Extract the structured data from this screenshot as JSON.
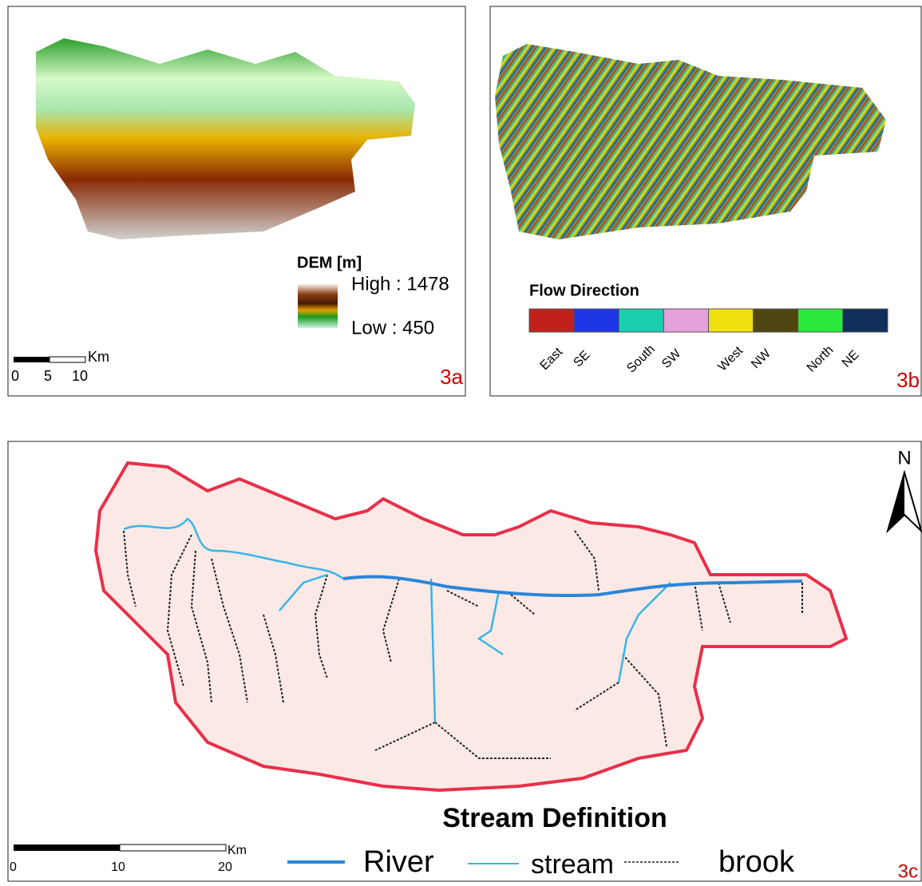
{
  "panel_a": {
    "legend_title": "DEM [m]",
    "high": "High : 1478",
    "low": "Low : 450",
    "scale_unit": "Km",
    "scale_ticks": [
      "0",
      "5",
      "10"
    ],
    "label": "3a"
  },
  "panel_b": {
    "legend_title": "Flow Direction",
    "classes": [
      {
        "name": "East",
        "color": "#c0211a"
      },
      {
        "name": "SE",
        "color": "#1f35e8"
      },
      {
        "name": "South",
        "color": "#19cfae"
      },
      {
        "name": "SW",
        "color": "#e6a0dc"
      },
      {
        "name": "West",
        "color": "#f0e010"
      },
      {
        "name": "NW",
        "color": "#4e4510"
      },
      {
        "name": "North",
        "color": "#2ae83a"
      },
      {
        "name": "NE",
        "color": "#0f2e5a"
      }
    ],
    "label": "3b"
  },
  "panel_c": {
    "north": "N",
    "title": "Stream Definition",
    "legend": [
      {
        "name": "River",
        "color": "#2a86d8"
      },
      {
        "name": "stream",
        "color": "#3ab4e6"
      },
      {
        "name": "brook",
        "color": "#222222"
      }
    ],
    "scale_unit": "Km",
    "scale_ticks": [
      "0",
      "10",
      "20"
    ],
    "label": "3c"
  }
}
